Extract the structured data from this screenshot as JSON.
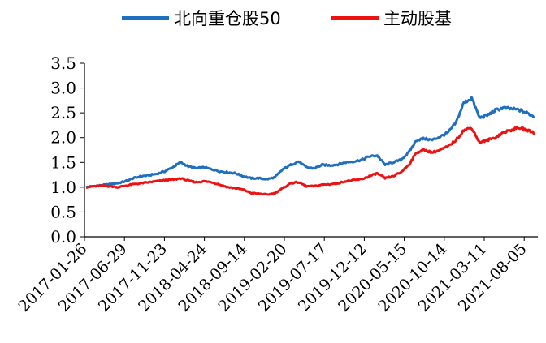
{
  "chart_data": {
    "type": "line",
    "title": "",
    "xlabel": "",
    "ylabel": "",
    "ylim": [
      0,
      3.5
    ],
    "yticks": [
      "0.0",
      "0.5",
      "1.0",
      "1.5",
      "2.0",
      "2.5",
      "3.0",
      "3.5"
    ],
    "x_tick_labels": [
      "2017-01-26",
      "2017-06-29",
      "2017-11-23",
      "2018-04-24",
      "2018-09-14",
      "2019-02-20",
      "2019-07-17",
      "2019-12-12",
      "2020-05-15",
      "2020-10-14",
      "2021-03-11",
      "2021-08-05"
    ],
    "x": [
      "2017-01",
      "2017-02",
      "2017-03",
      "2017-04",
      "2017-05",
      "2017-06",
      "2017-07",
      "2017-08",
      "2017-09",
      "2017-10",
      "2017-11",
      "2017-12",
      "2018-01",
      "2018-02",
      "2018-03",
      "2018-04",
      "2018-05",
      "2018-06",
      "2018-07",
      "2018-08",
      "2018-09",
      "2018-10",
      "2018-11",
      "2018-12",
      "2019-01",
      "2019-02",
      "2019-03",
      "2019-04",
      "2019-05",
      "2019-06",
      "2019-07",
      "2019-08",
      "2019-09",
      "2019-10",
      "2019-11",
      "2019-12",
      "2020-01",
      "2020-02",
      "2020-03",
      "2020-04",
      "2020-05",
      "2020-06",
      "2020-07",
      "2020-08",
      "2020-09",
      "2020-10",
      "2020-11",
      "2020-12",
      "2021-01",
      "2021-02",
      "2021-03",
      "2021-04",
      "2021-05",
      "2021-06",
      "2021-07",
      "2021-08",
      "2021-09",
      "2021-10"
    ],
    "series": [
      {
        "name": "北向重仓股50",
        "color": "#1f6fc1",
        "values": [
          1.0,
          1.02,
          1.04,
          1.06,
          1.08,
          1.12,
          1.18,
          1.22,
          1.24,
          1.27,
          1.32,
          1.4,
          1.5,
          1.42,
          1.38,
          1.4,
          1.36,
          1.32,
          1.3,
          1.28,
          1.22,
          1.18,
          1.18,
          1.16,
          1.2,
          1.36,
          1.45,
          1.52,
          1.4,
          1.38,
          1.45,
          1.44,
          1.46,
          1.5,
          1.52,
          1.55,
          1.62,
          1.64,
          1.45,
          1.5,
          1.55,
          1.7,
          1.95,
          1.98,
          1.95,
          2.02,
          2.1,
          2.3,
          2.7,
          2.8,
          2.4,
          2.45,
          2.55,
          2.6,
          2.58,
          2.56,
          2.5,
          2.42
        ]
      },
      {
        "name": "主动股基",
        "color": "#ee1111",
        "values": [
          1.0,
          1.02,
          1.03,
          1.02,
          1.0,
          1.03,
          1.06,
          1.08,
          1.1,
          1.12,
          1.14,
          1.15,
          1.18,
          1.13,
          1.1,
          1.12,
          1.1,
          1.05,
          1.0,
          0.98,
          0.95,
          0.88,
          0.87,
          0.85,
          0.88,
          0.98,
          1.08,
          1.1,
          1.02,
          1.02,
          1.05,
          1.06,
          1.08,
          1.12,
          1.14,
          1.16,
          1.22,
          1.28,
          1.18,
          1.22,
          1.3,
          1.45,
          1.7,
          1.75,
          1.7,
          1.75,
          1.82,
          1.95,
          2.15,
          2.2,
          1.9,
          1.95,
          2.0,
          2.1,
          2.15,
          2.2,
          2.15,
          2.1
        ]
      }
    ],
    "legend_position": "top-center",
    "grid": false
  }
}
